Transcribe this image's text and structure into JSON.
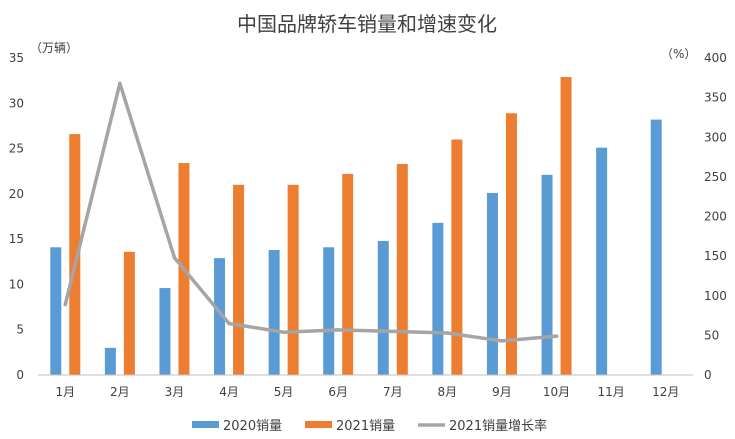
{
  "chart_data": {
    "type": "bar",
    "title": "中国品牌轿车销量和增速变化",
    "left_axis": {
      "unit_label": "（万辆）",
      "ylim": [
        0,
        35
      ],
      "ticks": [
        0,
        5,
        10,
        15,
        20,
        25,
        30,
        35
      ]
    },
    "right_axis": {
      "unit_label": "（%）",
      "ylim": [
        0,
        400
      ],
      "ticks": [
        0,
        50,
        100,
        150,
        200,
        250,
        300,
        350,
        400
      ]
    },
    "categories": [
      "1月",
      "2月",
      "3月",
      "4月",
      "5月",
      "6月",
      "7月",
      "8月",
      "9月",
      "10月",
      "11月",
      "12月"
    ],
    "series": [
      {
        "name": "2020销量",
        "kind": "bar",
        "axis": "left",
        "color": "#5b9bd5",
        "values": [
          14.1,
          3.0,
          9.6,
          12.9,
          13.8,
          14.1,
          14.8,
          16.8,
          20.1,
          22.1,
          25.1,
          28.2
        ]
      },
      {
        "name": "2021销量",
        "kind": "bar",
        "axis": "left",
        "color": "#ed7d31",
        "values": [
          26.6,
          13.6,
          23.4,
          21.0,
          21.0,
          22.2,
          23.3,
          26.0,
          28.9,
          32.9,
          null,
          null
        ]
      },
      {
        "name": "2021销量增长率",
        "kind": "line",
        "axis": "right",
        "color": "#a5a5a5",
        "values": [
          89,
          368,
          148,
          65,
          54,
          57,
          55,
          53,
          43,
          49,
          null,
          null
        ]
      }
    ],
    "grid": false,
    "legend_position": "bottom"
  }
}
